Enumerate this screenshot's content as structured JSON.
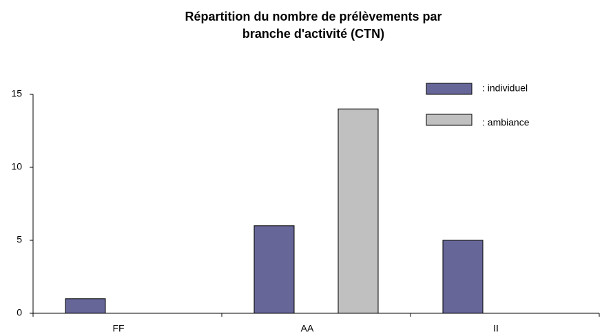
{
  "chart_data": {
    "type": "bar",
    "title": "Répartition du nombre de prélèvements par branche d'activité (CTN)",
    "categories": [
      "FF",
      "AA",
      "II"
    ],
    "series": [
      {
        "name": ": individuel",
        "color": "#666699",
        "values": [
          1,
          6,
          5
        ]
      },
      {
        "name": ": ambiance",
        "color": "#c0c0c0",
        "values": [
          null,
          14,
          null
        ]
      }
    ],
    "ylim": [
      0,
      15
    ],
    "yticks": [
      0,
      5,
      10,
      15
    ],
    "grid": false,
    "legend": "upper right"
  }
}
